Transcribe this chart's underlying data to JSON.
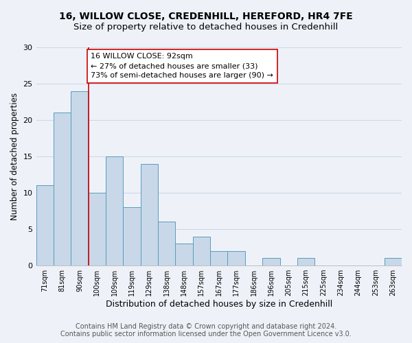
{
  "title_line1": "16, WILLOW CLOSE, CREDENHILL, HEREFORD, HR4 7FE",
  "title_line2": "Size of property relative to detached houses in Credenhill",
  "xlabel": "Distribution of detached houses by size in Credenhill",
  "ylabel": "Number of detached properties",
  "categories": [
    "71sqm",
    "81sqm",
    "90sqm",
    "100sqm",
    "109sqm",
    "119sqm",
    "129sqm",
    "138sqm",
    "148sqm",
    "157sqm",
    "167sqm",
    "177sqm",
    "186sqm",
    "196sqm",
    "205sqm",
    "215sqm",
    "225sqm",
    "234sqm",
    "244sqm",
    "253sqm",
    "263sqm"
  ],
  "values": [
    11,
    21,
    24,
    10,
    15,
    8,
    14,
    6,
    3,
    4,
    2,
    2,
    0,
    1,
    0,
    1,
    0,
    0,
    0,
    0,
    1
  ],
  "bar_color": "#c8d8e8",
  "bar_edge_color": "#5a9bbf",
  "vline_x_index": 2,
  "vline_color": "#cc0000",
  "annotation_line1": "16 WILLOW CLOSE: 92sqm",
  "annotation_line2": "← 27% of detached houses are smaller (33)",
  "annotation_line3": "73% of semi-detached houses are larger (90) →",
  "annotation_box_color": "#ffffff",
  "annotation_box_edge": "#cc0000",
  "ylim": [
    0,
    30
  ],
  "yticks": [
    0,
    5,
    10,
    15,
    20,
    25,
    30
  ],
  "grid_color": "#ccd8e8",
  "bg_color": "#eef2f8",
  "footer_text": "Contains HM Land Registry data © Crown copyright and database right 2024.\nContains public sector information licensed under the Open Government Licence v3.0.",
  "title_fontsize": 10,
  "subtitle_fontsize": 9.5,
  "annotation_fontsize": 8,
  "footer_fontsize": 7,
  "ylabel_fontsize": 8.5,
  "xlabel_fontsize": 9,
  "ytick_fontsize": 8,
  "xtick_fontsize": 7
}
